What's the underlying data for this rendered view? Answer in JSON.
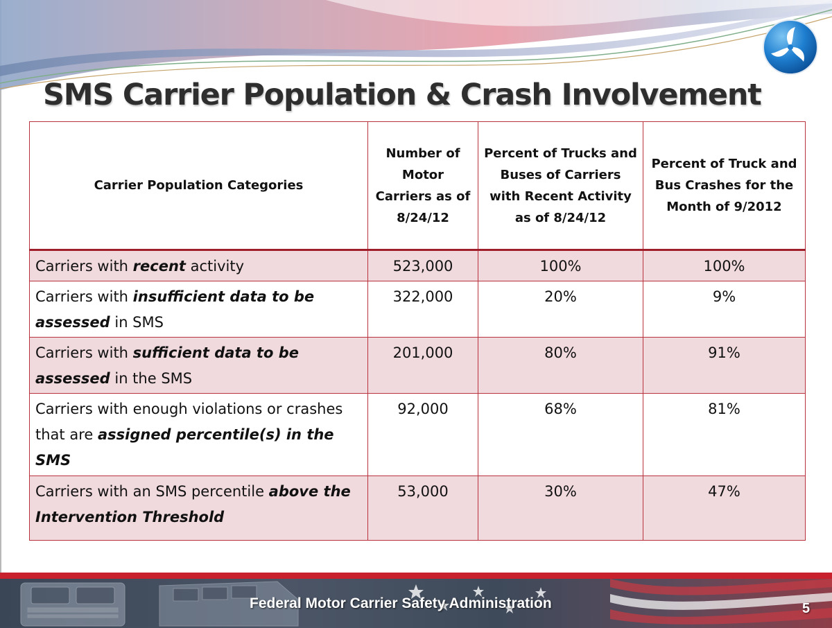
{
  "slide": {
    "title": "SMS Carrier Population & Crash Involvement",
    "accent_color": "#b8313c",
    "row_shade_color": "#f1dade"
  },
  "table": {
    "headers": [
      "Carrier Population Categories",
      "Number of Motor Carriers as of 8/24/12",
      "Percent of Trucks and Buses of Carriers with Recent Activity as of 8/24/12",
      "Percent of Truck and Bus Crashes for the Month of 9/2012"
    ],
    "rows": [
      {
        "category_prefix": "Carriers with ",
        "category_emphasis": "recent",
        "category_suffix": " activity",
        "carriers": "523,000",
        "percent_trucks_buses": "100%",
        "percent_crashes": "100%"
      },
      {
        "category_prefix": "Carriers with ",
        "category_emphasis": "insufficient data to be assessed",
        "category_suffix": " in SMS",
        "carriers": "322,000",
        "percent_trucks_buses": "20%",
        "percent_crashes": "9%"
      },
      {
        "category_prefix": "Carriers with ",
        "category_emphasis": "sufficient data to be assessed",
        "category_suffix": " in the SMS",
        "carriers": "201,000",
        "percent_trucks_buses": "80%",
        "percent_crashes": "91%"
      },
      {
        "category_prefix": "Carriers with enough violations or crashes that are ",
        "category_emphasis": "assigned percentile(s) in the SMS",
        "category_suffix": "",
        "carriers": "92,000",
        "percent_trucks_buses": "68%",
        "percent_crashes": "81%"
      },
      {
        "category_prefix": "Carriers with an SMS percentile ",
        "category_emphasis": "above the Intervention Threshold",
        "category_suffix": "",
        "carriers": "53,000",
        "percent_trucks_buses": "30%",
        "percent_crashes": "47%"
      }
    ]
  },
  "footer": {
    "agency": "Federal Motor Carrier Safety Administration",
    "page_number": "5"
  },
  "icons": {
    "logo": "dot-triskelion-logo-icon",
    "footer_image": "truck-bus-flag-banner"
  }
}
